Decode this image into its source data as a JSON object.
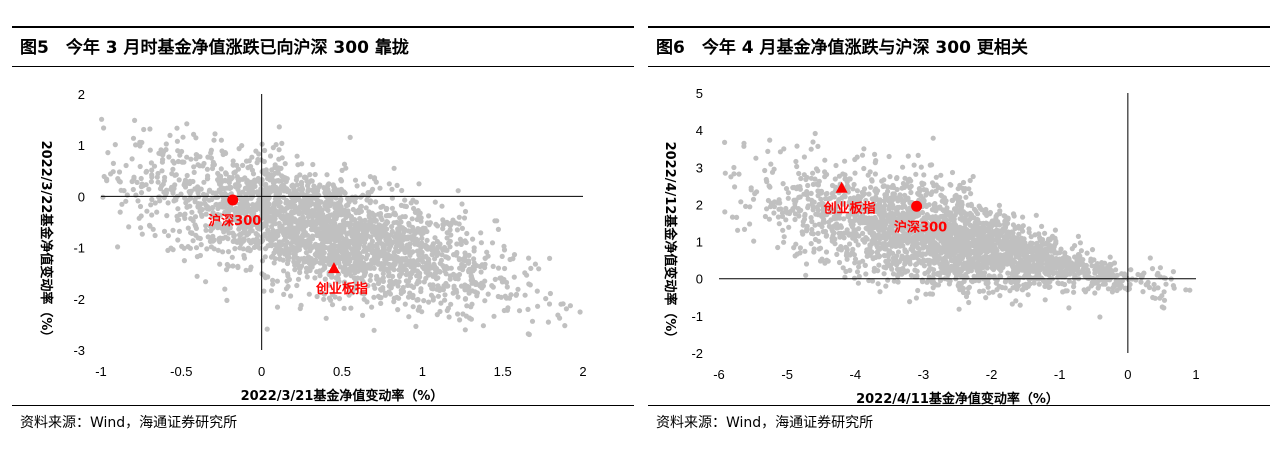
{
  "panels": [
    {
      "title": "图5　今年 3 月时基金净值涨跌已向沪深 300 靠拢",
      "source": "资料来源：Wind，海通证券研究所"
    },
    {
      "title": "图6　今年 4 月基金净值涨跌与沪深 300 更相关",
      "source": "资料来源：Wind，海通证券研究所"
    }
  ],
  "colors": {
    "points": "#c0c0c0",
    "highlight": "#ff0000",
    "axis": "#000000"
  },
  "chart_data": [
    {
      "type": "scatter",
      "title": "今年 3 月时基金净值涨跌已向沪深 300 靠拢",
      "xlabel": "2022/3/21基金净值变动率（%）",
      "ylabel": "2022/3/22基金净值变动率（%）",
      "xlim": [
        -1,
        2
      ],
      "ylim": [
        -3,
        2
      ],
      "xticks": [
        "-1",
        "-0.5",
        "0",
        "0.5",
        "1",
        "1.5",
        "2"
      ],
      "yticks": [
        "-3",
        "-2",
        "-1",
        "0",
        "1",
        "2"
      ],
      "highlights": [
        {
          "label": "沪深300",
          "marker": "circle",
          "x": -0.18,
          "y": -0.07
        },
        {
          "label": "创业板指",
          "marker": "triangle",
          "x": 0.45,
          "y": -1.4
        }
      ],
      "cloud": {
        "count": 2600,
        "x_center": 0.35,
        "x_spread": 0.55,
        "slope": -0.85,
        "y_intercept": -0.35,
        "y_noise": 0.55
      }
    },
    {
      "type": "scatter",
      "title": "今年 4 月基金净值涨跌与沪深 300 更相关",
      "xlabel": "2022/4/11基金净值变动率（%）",
      "ylabel": "2022/4/12基金净值变动率（%）",
      "xlim": [
        -6,
        1
      ],
      "ylim": [
        -2,
        5
      ],
      "xticks": [
        "-6",
        "-5",
        "-4",
        "-3",
        "-2",
        "-1",
        "0",
        "1"
      ],
      "yticks": [
        "-2",
        "-1",
        "0",
        "1",
        "2",
        "3",
        "4",
        "5"
      ],
      "highlights": [
        {
          "label": "创业板指",
          "marker": "triangle",
          "x": -4.2,
          "y": 2.45
        },
        {
          "label": "沪深300",
          "marker": "circle",
          "x": -3.1,
          "y": 1.95
        }
      ],
      "cloud": {
        "count": 2600,
        "x_center": -2.6,
        "x_spread": 1.25,
        "slope": -0.42,
        "y_intercept": -0.05,
        "y_noise": 0.55
      }
    }
  ]
}
